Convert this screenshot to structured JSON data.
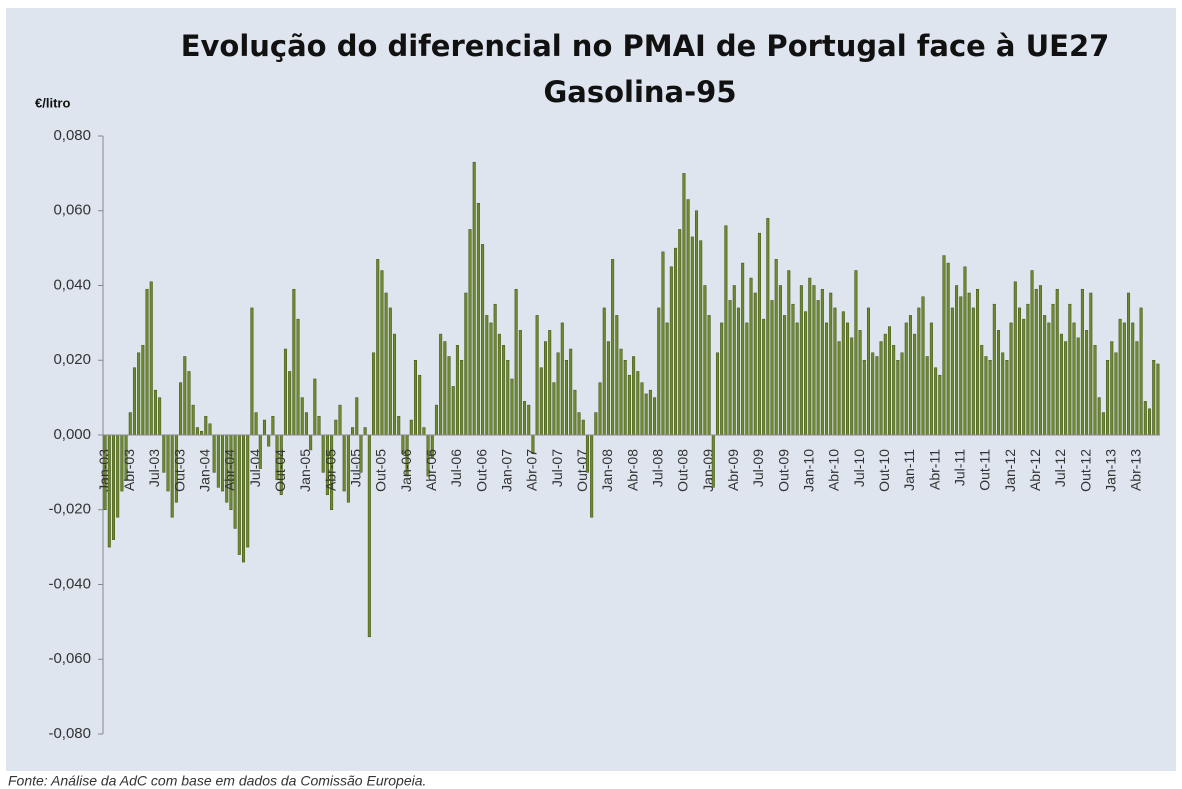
{
  "chart_data": {
    "type": "bar",
    "title": "Evolução do diferencial no PMAI de Portugal face à UE27",
    "subtitle": "Gasolina-95",
    "y_axis_label": "€/litro",
    "source": "Fonte: Análise da AdC com base em dados da Comissão Europeia.",
    "color": "#6e8a2e",
    "ylim": [
      -0.08,
      0.08
    ],
    "yticks": [
      {
        "value": -0.08,
        "label": "-0,080"
      },
      {
        "value": -0.06,
        "label": "-0,060"
      },
      {
        "value": -0.04,
        "label": "-0,040"
      },
      {
        "value": -0.02,
        "label": "-0,020"
      },
      {
        "value": 0,
        "label": "0,000"
      },
      {
        "value": 0.02,
        "label": "0,020"
      },
      {
        "value": 0.04,
        "label": "0,040"
      },
      {
        "value": 0.06,
        "label": "0,060"
      },
      {
        "value": 0.08,
        "label": "0,080"
      }
    ],
    "categories": [
      "Jan-03",
      null,
      null,
      null,
      null,
      null,
      "Abr-03",
      null,
      null,
      null,
      null,
      null,
      "Jul-03",
      null,
      null,
      null,
      null,
      null,
      "Out-03",
      null,
      null,
      null,
      null,
      null,
      "Jan-04",
      null,
      null,
      null,
      null,
      null,
      "Abr-04",
      null,
      null,
      null,
      null,
      null,
      "Jul-04",
      null,
      null,
      null,
      null,
      null,
      "Out-04",
      null,
      null,
      null,
      null,
      null,
      "Jan-05",
      null,
      null,
      null,
      null,
      null,
      "Abr-05",
      null,
      null,
      null,
      null,
      null,
      "Jul-05",
      null,
      null,
      null,
      null,
      null,
      "Out-05",
      null,
      null,
      null,
      null,
      null,
      "Jan-06",
      null,
      null,
      null,
      null,
      null,
      "Abr-06",
      null,
      null,
      null,
      null,
      null,
      "Jul-06",
      null,
      null,
      null,
      null,
      null,
      "Out-06",
      null,
      null,
      null,
      null,
      null,
      "Jan-07",
      null,
      null,
      null,
      null,
      null,
      "Abr-07",
      null,
      null,
      null,
      null,
      null,
      "Jul-07",
      null,
      null,
      null,
      null,
      null,
      "Out-07",
      null,
      null,
      null,
      null,
      null,
      "Jan-08",
      null,
      null,
      null,
      null,
      null,
      "Abr-08",
      null,
      null,
      null,
      null,
      null,
      "Jul-08",
      null,
      null,
      null,
      null,
      null,
      "Out-08",
      null,
      null,
      null,
      null,
      null,
      "Jan-09",
      null,
      null,
      null,
      null,
      null,
      "Abr-09",
      null,
      null,
      null,
      null,
      null,
      "Jul-09",
      null,
      null,
      null,
      null,
      null,
      "Out-09",
      null,
      null,
      null,
      null,
      null,
      "Jan-10",
      null,
      null,
      null,
      null,
      null,
      "Abr-10",
      null,
      null,
      null,
      null,
      null,
      "Jul-10",
      null,
      null,
      null,
      null,
      null,
      "Out-10",
      null,
      null,
      null,
      null,
      null,
      "Jan-11",
      null,
      null,
      null,
      null,
      null,
      "Abr-11",
      null,
      null,
      null,
      null,
      null,
      "Jul-11",
      null,
      null,
      null,
      null,
      null,
      "Out-11",
      null,
      null,
      null,
      null,
      null,
      "Jan-12",
      null,
      null,
      null,
      null,
      null,
      "Abr-12",
      null,
      null,
      null,
      null,
      null,
      "Jul-12",
      null,
      null,
      null,
      null,
      null,
      "Out-12",
      null,
      null,
      null,
      null,
      null,
      "Jan-13",
      null,
      null,
      null,
      null,
      null,
      "Abr-13",
      null,
      null,
      null,
      null,
      null
    ],
    "values": [
      -0.02,
      -0.03,
      -0.028,
      -0.022,
      -0.015,
      -0.012,
      0.006,
      0.018,
      0.022,
      0.024,
      0.039,
      0.041,
      0.012,
      0.01,
      -0.01,
      -0.015,
      -0.022,
      -0.018,
      0.014,
      0.021,
      0.017,
      0.008,
      0.002,
      0.001,
      0.005,
      0.003,
      -0.01,
      -0.014,
      -0.015,
      -0.018,
      -0.02,
      -0.025,
      -0.032,
      -0.034,
      -0.03,
      0.034,
      0.006,
      -0.009,
      0.004,
      -0.003,
      0.005,
      -0.012,
      -0.016,
      0.023,
      0.017,
      0.039,
      0.031,
      0.01,
      0.006,
      -0.004,
      0.015,
      0.005,
      -0.01,
      -0.016,
      -0.02,
      0.004,
      0.008,
      -0.015,
      -0.018,
      0.002,
      0.01,
      -0.01,
      0.002,
      -0.054,
      0.022,
      0.047,
      0.044,
      0.038,
      0.034,
      0.027,
      0.005,
      -0.005,
      -0.011,
      0.004,
      0.02,
      0.016,
      0.002,
      -0.011,
      -0.006,
      0.008,
      0.027,
      0.025,
      0.021,
      0.013,
      0.024,
      0.02,
      0.038,
      0.055,
      0.073,
      0.062,
      0.051,
      0.032,
      0.03,
      0.035,
      0.027,
      0.024,
      0.02,
      0.015,
      0.039,
      0.028,
      0.009,
      0.008,
      -0.005,
      0.032,
      0.018,
      0.025,
      0.028,
      0.014,
      0.022,
      0.03,
      0.02,
      0.023,
      0.012,
      0.006,
      0.004,
      -0.01,
      -0.022,
      0.006,
      0.014,
      0.034,
      0.025,
      0.047,
      0.032,
      0.023,
      0.02,
      0.016,
      0.021,
      0.017,
      0.014,
      0.011,
      0.012,
      0.01,
      0.034,
      0.049,
      0.03,
      0.045,
      0.05,
      0.055,
      0.07,
      0.063,
      0.053,
      0.06,
      0.052,
      0.04,
      0.032,
      -0.014,
      0.022,
      0.03,
      0.056,
      0.036,
      0.04,
      0.034,
      0.046,
      0.03,
      0.042,
      0.038,
      0.054,
      0.031,
      0.058,
      0.036,
      0.047,
      0.04,
      0.032,
      0.044,
      0.035,
      0.03,
      0.04,
      0.033,
      0.042,
      0.04,
      0.036,
      0.039,
      0.03,
      0.038,
      0.034,
      0.025,
      0.033,
      0.03,
      0.026,
      0.044,
      0.028,
      0.02,
      0.034,
      0.022,
      0.021,
      0.025,
      0.027,
      0.029,
      0.024,
      0.02,
      0.022,
      0.03,
      0.032,
      0.027,
      0.034,
      0.037,
      0.021,
      0.03,
      0.018,
      0.016,
      0.048,
      0.046,
      0.034,
      0.04,
      0.037,
      0.045,
      0.038,
      0.034,
      0.039,
      0.024,
      0.021,
      0.02,
      0.035,
      0.028,
      0.022,
      0.02,
      0.03,
      0.041,
      0.034,
      0.031,
      0.035,
      0.044,
      0.039,
      0.04,
      0.032,
      0.03,
      0.035,
      0.039,
      0.027,
      0.025,
      0.035,
      0.03,
      0.026,
      0.039,
      0.028,
      0.038,
      0.024,
      0.01,
      0.006,
      0.02,
      0.025,
      0.022,
      0.031,
      0.03,
      0.038,
      0.03,
      0.025,
      0.034,
      0.009,
      0.007,
      0.02,
      0.019
    ]
  }
}
